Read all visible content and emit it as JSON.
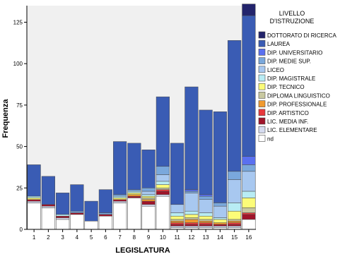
{
  "chart_data": {
    "type": "bar",
    "stacked": true,
    "xlabel": "LEGISLATURA",
    "ylabel": "Frequenza",
    "ylim": [
      0,
      135
    ],
    "yticks": [
      0,
      25,
      50,
      75,
      100,
      125
    ],
    "categories": [
      "1",
      "2",
      "3",
      "4",
      "5",
      "6",
      "7",
      "8",
      "9",
      "10",
      "11",
      "12",
      "13",
      "14",
      "15",
      "16"
    ],
    "grid": false,
    "plot_background": "#f0f0f0",
    "legend": {
      "title_lines": [
        "LIVELLO",
        "D'ISTRUZIONE"
      ],
      "position": "right"
    },
    "series": [
      {
        "name": "nd",
        "color": "#ffffff",
        "values": [
          16,
          13,
          6,
          9,
          5,
          8,
          16,
          19,
          14,
          20,
          1,
          1,
          1,
          1,
          1,
          6
        ]
      },
      {
        "name": "LIC. ELEMENTARE",
        "color": "#d6dcf0",
        "values": [
          1,
          1,
          1,
          0,
          0,
          0,
          1,
          0,
          1,
          1,
          1,
          1,
          1,
          1,
          1,
          0
        ]
      },
      {
        "name": "LIC. MEDIA INF.",
        "color": "#a0142a",
        "values": [
          1,
          1,
          1,
          1,
          0,
          1,
          1,
          1,
          2,
          2,
          1,
          1,
          1,
          1,
          1,
          3
        ]
      },
      {
        "name": "DIP. ARTISTICO",
        "color": "#e8383c",
        "values": [
          0,
          0,
          0,
          0,
          0,
          0,
          0,
          0,
          0,
          1,
          1,
          1,
          1,
          0,
          1,
          1
        ]
      },
      {
        "name": "DIP. PROFESSIONALE",
        "color": "#f09a30",
        "values": [
          0,
          0,
          0,
          0,
          0,
          0,
          0,
          1,
          1,
          0,
          1,
          2,
          1,
          1,
          1,
          0
        ]
      },
      {
        "name": "DIPLOMA LINGUISTICO",
        "color": "#c8c8a0",
        "values": [
          0,
          0,
          0,
          0,
          0,
          0,
          0,
          0,
          1,
          1,
          1,
          1,
          1,
          0,
          1,
          3
        ]
      },
      {
        "name": "DIP. TECNICO",
        "color": "#fcfc78",
        "values": [
          1,
          0,
          0,
          0,
          0,
          0,
          1,
          1,
          1,
          2,
          2,
          2,
          2,
          2,
          5,
          6
        ]
      },
      {
        "name": "DIP. MAGISTRALE",
        "color": "#b8ecf4",
        "values": [
          1,
          0,
          1,
          0,
          0,
          0,
          1,
          1,
          1,
          2,
          2,
          2,
          2,
          1,
          5,
          4
        ]
      },
      {
        "name": "DIP. MEDIE SUP.",
        "color": "#7aa8dc",
        "values": [
          0,
          0,
          0,
          0,
          0,
          0,
          0,
          0,
          0,
          0,
          0,
          0,
          0,
          0,
          0,
          0
        ]
      },
      {
        "name": "LICEO",
        "color": "#a8c8f0",
        "values": [
          0,
          0,
          0,
          0,
          0,
          0,
          0,
          0,
          2,
          4,
          5,
          11,
          8,
          7,
          14,
          12
        ]
      },
      {
        "name": "DIP. MEDIE SUP.",
        "color": "#7aa8dc",
        "values": [
          0,
          0,
          0,
          1,
          0,
          1,
          1,
          1,
          2,
          5,
          0,
          1,
          2,
          2,
          5,
          4
        ]
      },
      {
        "name": "DIP. UNIVERSITARIO",
        "color": "#5a70f0",
        "values": [
          0,
          0,
          0,
          0,
          0,
          0,
          0,
          0,
          0,
          0,
          0,
          1,
          1,
          0,
          0,
          5
        ]
      },
      {
        "name": "LAUREA",
        "color": "#3a5cb4",
        "values": [
          19,
          17,
          13,
          16,
          12,
          14,
          32,
          28,
          23,
          42,
          37,
          62,
          51,
          55,
          79,
          85
        ]
      },
      {
        "name": "DOTTORATO DI RICERCA",
        "color": "#23246c",
        "values": [
          0,
          0,
          0,
          0,
          0,
          0,
          0,
          0,
          0,
          0,
          0,
          0,
          0,
          0,
          0,
          7
        ]
      }
    ],
    "legend_entries": [
      {
        "label": "DOTTORATO DI RICERCA",
        "color": "#23246c"
      },
      {
        "label": "LAUREA",
        "color": "#3a5cb4"
      },
      {
        "label": "DIP. UNIVERSITARIO",
        "color": "#5a70f0"
      },
      {
        "label": "DIP. MEDIE SUP.",
        "color": "#7aa8dc"
      },
      {
        "label": "LICEO",
        "color": "#a8c8f0"
      },
      {
        "label": "DIP. MAGISTRALE",
        "color": "#b8ecf4"
      },
      {
        "label": "DIP. TECNICO",
        "color": "#fcfc78"
      },
      {
        "label": "DIPLOMA LINGUISTICO",
        "color": "#c8c8a0"
      },
      {
        "label": "DIP. PROFESSIONALE",
        "color": "#f09a30"
      },
      {
        "label": "DIP. ARTISTICO",
        "color": "#e8383c"
      },
      {
        "label": "LIC. MEDIA INF.",
        "color": "#a0142a"
      },
      {
        "label": "LIC. ELEMENTARE",
        "color": "#d6dcf0"
      },
      {
        "label": "nd",
        "color": "#ffffff"
      }
    ]
  }
}
